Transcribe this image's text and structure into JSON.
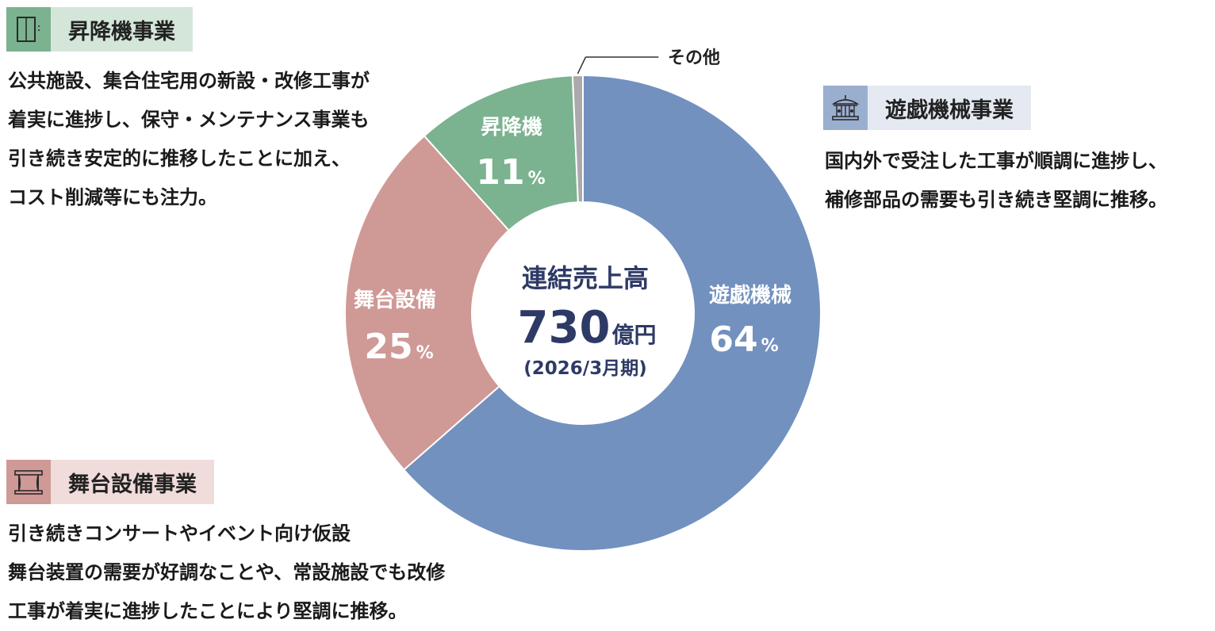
{
  "chart_data": {
    "type": "pie",
    "variant": "donut",
    "center": {
      "title": "連結売上高",
      "value": "730",
      "unit": "億円",
      "period": "(2026/3月期)"
    },
    "slices": [
      {
        "name": "遊戯機械",
        "value": 64,
        "label": "64",
        "pct": "%",
        "color": "#7291bf"
      },
      {
        "name": "舞台設備",
        "value": 25,
        "label": "25",
        "pct": "%",
        "color": "#cf9996"
      },
      {
        "name": "昇降機",
        "value": 11,
        "label": "11",
        "pct": "%",
        "color": "#7bb28f"
      },
      {
        "name": "その他",
        "value": 0.7,
        "color": "#aaaaaa"
      }
    ]
  },
  "segments": {
    "elevator": {
      "title": "昇降機事業",
      "icon": "elevator-icon",
      "icon_bg": "#7bb28f",
      "title_bg": "#d3e6d9",
      "lines": [
        "公共施設、集合住宅用の新設・改修工事が",
        "着実に進捗し、保守・メンテナンス事業も",
        "引き続き安定的に推移したことに加え、",
        "コスト削減等にも注力。"
      ]
    },
    "amusement": {
      "title": "遊戯機械事業",
      "icon": "carousel-icon",
      "icon_bg": "#9aaed0",
      "title_bg": "#e4e9f2",
      "lines": [
        "国内外で受注した工事が順調に進捗し、",
        "補修部品の需要も引き続き堅調に推移。"
      ]
    },
    "stage": {
      "title": "舞台設備事業",
      "icon": "stage-icon",
      "icon_bg": "#cf9996",
      "title_bg": "#f0dcdb",
      "lines": [
        "引き続きコンサートやイベント向け仮設",
        "舞台装置の需要が好調なことや、常設施設でも改修",
        "工事が着実に進捗したことにより堅調に推移。"
      ]
    }
  }
}
